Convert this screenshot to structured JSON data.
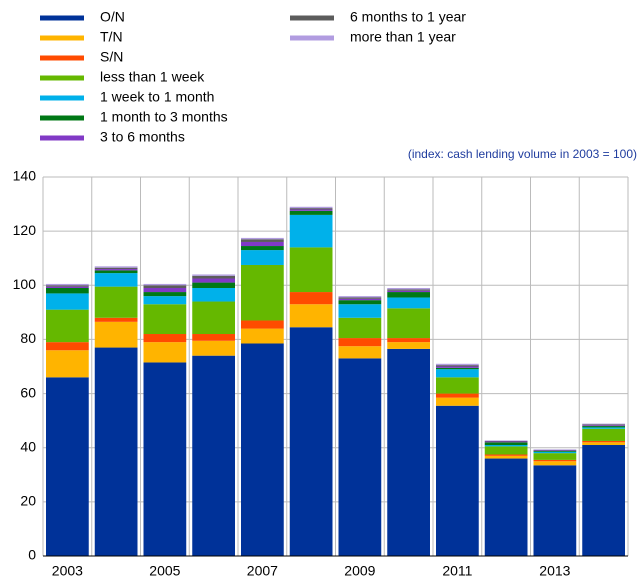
{
  "chart_data": {
    "type": "stacked_bar",
    "annotation": "(index: cash lending volume in 2003 = 100)",
    "categories": [
      "2003",
      null,
      "2005",
      null,
      "2007",
      null,
      "2009",
      null,
      "2011",
      null,
      "2013",
      null
    ],
    "series": [
      {
        "name": "O/N",
        "color": "#003299",
        "values": [
          66,
          77,
          71.5,
          74,
          78.5,
          84.5,
          73,
          76.5,
          55.5,
          36,
          33.5,
          41
        ]
      },
      {
        "name": "T/N",
        "color": "#ffb400",
        "values": [
          10,
          9.5,
          7.5,
          5.5,
          5.5,
          8.5,
          4.5,
          2.5,
          3,
          1,
          1.5,
          1
        ]
      },
      {
        "name": "S/N",
        "color": "#ff4b00",
        "values": [
          3,
          1.5,
          3,
          2.5,
          3,
          4.5,
          3,
          1.5,
          1.5,
          0.5,
          0.5,
          0.5
        ]
      },
      {
        "name": "less than 1 week",
        "color": "#65b800",
        "values": [
          12,
          11.5,
          11,
          12,
          20.5,
          16.5,
          7.5,
          11,
          6,
          3,
          2.5,
          4.5
        ]
      },
      {
        "name": "1 week to 1 month",
        "color": "#00b1ea",
        "values": [
          6,
          5,
          3,
          5,
          5.5,
          12,
          5,
          4,
          3,
          0.5,
          0.5,
          0.5
        ]
      },
      {
        "name": "1 month to 3 months",
        "color": "#007816",
        "values": [
          2,
          1,
          1.5,
          2,
          1.5,
          1.5,
          1.5,
          2,
          0.5,
          1,
          0.3,
          0.5
        ]
      },
      {
        "name": "3 to 6 months",
        "color": "#8139c6",
        "values": [
          0.5,
          0.5,
          1.5,
          1.5,
          1.5,
          0.5,
          0.5,
          0.5,
          0.5,
          0.3,
          0.2,
          0.3
        ]
      },
      {
        "name": "6 months to 1 year",
        "color": "#5c5c5c",
        "values": [
          0.5,
          0.5,
          1,
          1,
          1,
          0.5,
          0.5,
          0.5,
          0.5,
          0.2,
          0.2,
          0.3
        ]
      },
      {
        "name": "more than 1 year",
        "color": "#b19ce0",
        "values": [
          0.5,
          0.5,
          0.5,
          0.5,
          0.5,
          0.5,
          0.5,
          0.5,
          0.5,
          0.2,
          0.2,
          0.3
        ]
      }
    ],
    "ylim": [
      0,
      140
    ],
    "yticks": [
      0,
      20,
      40,
      60,
      80,
      100,
      120,
      140
    ],
    "grid": true,
    "legend": "top"
  }
}
